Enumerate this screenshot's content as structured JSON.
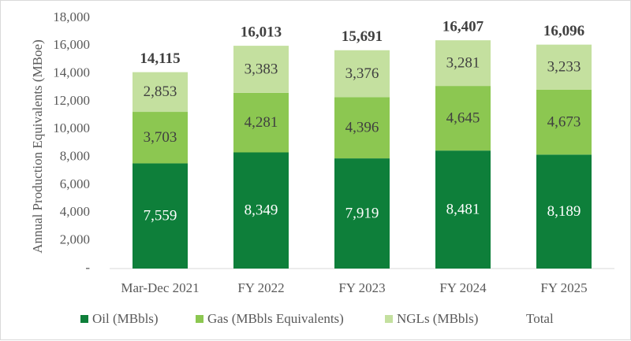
{
  "chart_data": {
    "type": "bar",
    "stacked": true,
    "title": "",
    "xlabel": "",
    "ylabel": "Annual Production Equivalents (MBoe)",
    "ylim": [
      0,
      18000
    ],
    "yticks": [
      0,
      2000,
      4000,
      6000,
      8000,
      10000,
      12000,
      14000,
      16000,
      18000
    ],
    "ytick_labels": [
      "-",
      "2,000",
      "4,000",
      "6,000",
      "8,000",
      "10,000",
      "12,000",
      "14,000",
      "16,000",
      "18,000"
    ],
    "grid": false,
    "legend_position": "bottom",
    "categories": [
      "Mar-Dec 2021",
      "FY 2022",
      "FY 2023",
      "FY 2024",
      "FY 2025"
    ],
    "series": [
      {
        "name": "Oil (MBbls)",
        "color": "#0e7f3a",
        "label_color": "#ffffff",
        "values": [
          7559,
          8349,
          7919,
          8481,
          8189
        ],
        "labels": [
          "7,559",
          "8,349",
          "7,919",
          "8,481",
          "8,189"
        ]
      },
      {
        "name": "Gas (MBbls Equivalents)",
        "color": "#8cc751",
        "label_color": "#404040",
        "values": [
          3703,
          4281,
          4396,
          4645,
          4673
        ],
        "labels": [
          "3,703",
          "4,281",
          "4,396",
          "4,645",
          "4,673"
        ]
      },
      {
        "name": "NGLs (MBbls)",
        "color": "#c4e09f",
        "label_color": "#404040",
        "values": [
          2853,
          3383,
          3376,
          3281,
          3233
        ],
        "labels": [
          "2,853",
          "3,383",
          "3,376",
          "3,281",
          "3,233"
        ]
      }
    ],
    "total": {
      "name": "Total",
      "values": [
        14115,
        16013,
        15691,
        16407,
        16096
      ],
      "labels": [
        "14,115",
        "16,013",
        "15,691",
        "16,407",
        "16,096"
      ]
    }
  }
}
